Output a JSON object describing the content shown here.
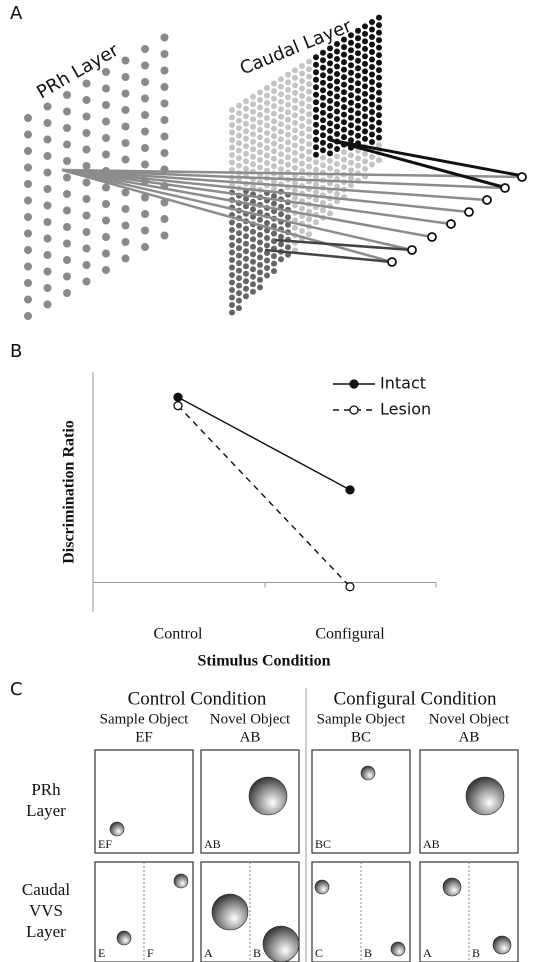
{
  "panel_a": {
    "label": "A",
    "layers": [
      "PRh Layer",
      "Caudal Layer"
    ]
  },
  "chart_data": {
    "type": "line",
    "label": "B",
    "x_label": "Stimulus Condition",
    "y_label": "Discrimination Ratio",
    "categories": [
      "Control",
      "Configural"
    ],
    "series": [
      {
        "name": "Intact",
        "color": "#111111",
        "dashed": false,
        "filled": true,
        "values": [
          0.88,
          0.44
        ]
      },
      {
        "name": "Lesion",
        "color": "#111111",
        "dashed": true,
        "filled": false,
        "values": [
          0.84,
          -0.02
        ]
      }
    ],
    "ylim": [
      -0.14,
      1
    ],
    "legend": "upper right"
  },
  "panel_c": {
    "label": "C",
    "conditions": [
      {
        "title": "Control Condition",
        "columns": [
          {
            "role": "Sample Object",
            "code": "EF"
          },
          {
            "role": "Novel Object",
            "code": "AB"
          }
        ]
      },
      {
        "title": "Configural Condition",
        "columns": [
          {
            "role": "Sample Object",
            "code": "BC"
          },
          {
            "role": "Novel Object",
            "code": "AB"
          }
        ]
      }
    ],
    "rows": [
      {
        "label": [
          "PRh",
          "Layer"
        ],
        "cells": [
          [
            "EF"
          ],
          [
            "AB"
          ],
          [
            "BC"
          ],
          [
            "AB"
          ]
        ]
      },
      {
        "label": [
          "Caudal",
          "VVS",
          "Layer"
        ],
        "cells": [
          [
            "E",
            "F"
          ],
          [
            "A",
            "B"
          ],
          [
            "C",
            "B"
          ],
          [
            "A",
            "B"
          ]
        ]
      }
    ]
  }
}
